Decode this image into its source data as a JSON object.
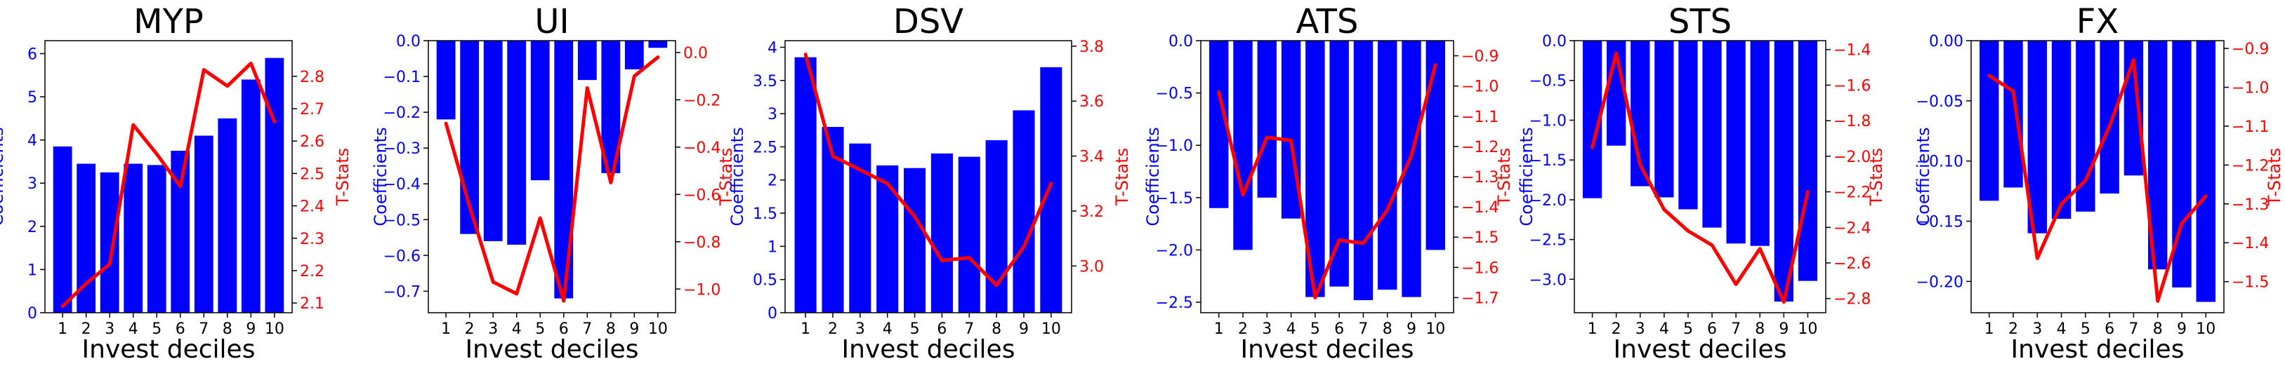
{
  "colors": {
    "bar": "#0000ff",
    "line": "#ff0000",
    "axis": "#000000",
    "left_axis_text": "#0000ff",
    "right_axis_text": "#ff0000"
  },
  "chart_data": [
    {
      "type": "bar",
      "title": "MYP",
      "xlabel": "Invest deciles",
      "ylabel": "Coefficients",
      "y2label": "T-Stats",
      "categories": [
        "1",
        "2",
        "3",
        "4",
        "5",
        "6",
        "7",
        "8",
        "9",
        "10"
      ],
      "series": [
        {
          "values": [
            3.85,
            3.45,
            3.25,
            3.45,
            3.42,
            3.75,
            4.1,
            4.5,
            5.4,
            5.9
          ]
        },
        {
          "axis": "right",
          "values": [
            2.09,
            2.16,
            2.22,
            2.65,
            2.56,
            2.46,
            2.82,
            2.77,
            2.84,
            2.66
          ]
        }
      ],
      "ylim": [
        0,
        6.3
      ],
      "yticks": [
        0,
        1,
        2,
        3,
        4,
        5,
        6
      ],
      "y2lim": [
        2.07,
        2.91
      ],
      "y2ticks": [
        2.1,
        2.2,
        2.3,
        2.4,
        2.5,
        2.6,
        2.7,
        2.8
      ]
    },
    {
      "type": "bar",
      "title": "UI",
      "xlabel": "Invest deciles",
      "ylabel": "Coefficients",
      "y2label": "T-Stats",
      "categories": [
        "1",
        "2",
        "3",
        "4",
        "5",
        "6",
        "7",
        "8",
        "9",
        "10"
      ],
      "series": [
        {
          "values": [
            -0.22,
            -0.54,
            -0.56,
            -0.57,
            -0.39,
            -0.72,
            -0.11,
            -0.37,
            -0.08,
            -0.02
          ]
        },
        {
          "axis": "right",
          "values": [
            -0.3,
            -0.65,
            -0.97,
            -1.02,
            -0.7,
            -1.05,
            -0.15,
            -0.55,
            -0.1,
            -0.02
          ]
        }
      ],
      "ylim": [
        -0.76,
        0
      ],
      "yticks": [
        0.0,
        -0.1,
        -0.2,
        -0.3,
        -0.4,
        -0.5,
        -0.6,
        -0.7
      ],
      "yticklabels": [
        "0.0",
        "−0.1",
        "−0.2",
        "−0.3",
        "−0.4",
        "−0.5",
        "−0.6",
        "−0.7"
      ],
      "y2lim": [
        -1.1,
        0.05
      ],
      "y2ticks": [
        0.0,
        -0.2,
        -0.4,
        -0.6,
        -0.8,
        -1.0
      ],
      "y2ticklabels": [
        "0.0",
        "−0.2",
        "−0.4",
        "−0.6",
        "−0.8",
        "−1.0"
      ]
    },
    {
      "type": "bar",
      "title": "DSV",
      "xlabel": "Invest deciles",
      "ylabel": "Coefficients",
      "y2label": "T-Stats",
      "categories": [
        "1",
        "2",
        "3",
        "4",
        "5",
        "6",
        "7",
        "8",
        "9",
        "10"
      ],
      "series": [
        {
          "values": [
            3.85,
            2.8,
            2.55,
            2.22,
            2.18,
            2.4,
            2.35,
            2.6,
            3.05,
            3.7
          ]
        },
        {
          "axis": "right",
          "values": [
            3.77,
            3.4,
            3.35,
            3.3,
            3.18,
            3.02,
            3.03,
            2.93,
            3.07,
            3.3
          ]
        }
      ],
      "ylim": [
        0,
        4.1
      ],
      "yticks": [
        0.0,
        0.5,
        1.0,
        1.5,
        2.0,
        2.5,
        3.0,
        3.5,
        4.0
      ],
      "y2lim": [
        2.83,
        3.82
      ],
      "y2ticks": [
        3.0,
        3.2,
        3.4,
        3.6,
        3.8
      ]
    },
    {
      "type": "bar",
      "title": "ATS",
      "xlabel": "Invest deciles",
      "ylabel": "Coefficients",
      "y2label": "T-Stats",
      "categories": [
        "1",
        "2",
        "3",
        "4",
        "5",
        "6",
        "7",
        "8",
        "9",
        "10"
      ],
      "series": [
        {
          "values": [
            -1.6,
            -2.0,
            -1.5,
            -1.7,
            -2.45,
            -2.35,
            -2.48,
            -2.38,
            -2.45,
            -2.0
          ]
        },
        {
          "axis": "right",
          "values": [
            -1.02,
            -1.36,
            -1.17,
            -1.18,
            -1.7,
            -1.51,
            -1.52,
            -1.41,
            -1.23,
            -0.93
          ]
        }
      ],
      "ylim": [
        -2.6,
        0
      ],
      "yticks": [
        0.0,
        -0.5,
        -1.0,
        -1.5,
        -2.0,
        -2.5
      ],
      "yticklabels": [
        "0.0",
        "−0.5",
        "−1.0",
        "−1.5",
        "−2.0",
        "−2.5"
      ],
      "y2lim": [
        -1.75,
        -0.85
      ],
      "y2ticks": [
        -0.9,
        -1.0,
        -1.1,
        -1.2,
        -1.3,
        -1.4,
        -1.5,
        -1.6,
        -1.7
      ],
      "y2ticklabels": [
        "−0.9",
        "−1.0",
        "−1.1",
        "−1.2",
        "−1.3",
        "−1.4",
        "−1.5",
        "−1.6",
        "−1.7"
      ]
    },
    {
      "type": "bar",
      "title": "STS",
      "xlabel": "Invest deciles",
      "ylabel": "Coefficients",
      "y2label": "T-Stats",
      "categories": [
        "1",
        "2",
        "3",
        "4",
        "5",
        "6",
        "7",
        "8",
        "9",
        "10"
      ],
      "series": [
        {
          "values": [
            -1.98,
            -1.32,
            -1.83,
            -1.97,
            -2.12,
            -2.35,
            -2.55,
            -2.58,
            -3.28,
            -3.02
          ]
        },
        {
          "axis": "right",
          "values": [
            -1.95,
            -1.42,
            -2.05,
            -2.3,
            -2.42,
            -2.5,
            -2.72,
            -2.52,
            -2.82,
            -2.2
          ]
        }
      ],
      "ylim": [
        -3.42,
        0
      ],
      "yticks": [
        0.0,
        -0.5,
        -1.0,
        -1.5,
        -2.0,
        -2.5,
        -3.0
      ],
      "yticklabels": [
        "0.0",
        "−0.5",
        "−1.0",
        "−1.5",
        "−2.0",
        "−2.5",
        "−3.0"
      ],
      "y2lim": [
        -2.88,
        -1.35
      ],
      "y2ticks": [
        -1.4,
        -1.6,
        -1.8,
        -2.0,
        -2.2,
        -2.4,
        -2.6,
        -2.8
      ],
      "y2ticklabels": [
        "−1.4",
        "−1.6",
        "−1.8",
        "−2.0",
        "−2.2",
        "−2.4",
        "−2.6",
        "−2.8"
      ]
    },
    {
      "type": "bar",
      "title": "FX",
      "xlabel": "Invest deciles",
      "ylabel": "Coefficients",
      "y2label": "T-Stats",
      "categories": [
        "1",
        "2",
        "3",
        "4",
        "5",
        "6",
        "7",
        "8",
        "9",
        "10"
      ],
      "series": [
        {
          "values": [
            -0.133,
            -0.122,
            -0.16,
            -0.148,
            -0.142,
            -0.127,
            -0.112,
            -0.19,
            -0.205,
            -0.217
          ]
        },
        {
          "axis": "right",
          "values": [
            -0.97,
            -1.01,
            -1.44,
            -1.3,
            -1.24,
            -1.1,
            -0.93,
            -1.55,
            -1.35,
            -1.28
          ]
        }
      ],
      "ylim": [
        -0.226,
        0
      ],
      "yticks": [
        0.0,
        -0.05,
        -0.1,
        -0.15,
        -0.2
      ],
      "yticklabels": [
        "0.00",
        "−0.05",
        "−0.10",
        "−0.15",
        "−0.20"
      ],
      "y2lim": [
        -1.58,
        -0.88
      ],
      "y2ticks": [
        -0.9,
        -1.0,
        -1.1,
        -1.2,
        -1.3,
        -1.4,
        -1.5
      ],
      "y2ticklabels": [
        "−0.9",
        "−1.0",
        "−1.1",
        "−1.2",
        "−1.3",
        "−1.4",
        "−1.5"
      ]
    }
  ]
}
